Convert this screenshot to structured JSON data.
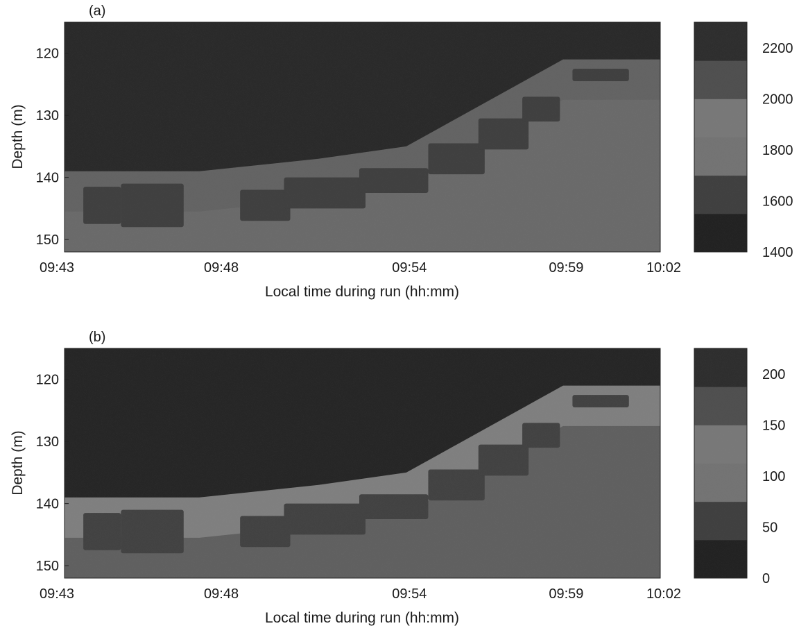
{
  "chart_data": [
    {
      "type": "heatmap",
      "panel_label": "(a)",
      "title": "",
      "xlabel": "Local time during run (hh:mm)",
      "ylabel": "Depth (m)",
      "x_ticks": [
        "09:43",
        "09:48",
        "09:54",
        "09:59",
        "10:02"
      ],
      "x_tick_minutes": [
        0,
        5,
        11,
        16,
        19
      ],
      "y_ticks": [
        120,
        130,
        140,
        150
      ],
      "ylim": [
        115,
        152
      ],
      "y_inverted": true,
      "colorbar": {
        "ticks": [
          2200,
          2000,
          1800,
          1600,
          1400
        ],
        "range": [
          1400,
          2300
        ]
      },
      "seafloor_profile": {
        "time_min": [
          0,
          4.3,
          8.1,
          10.9,
          15.9,
          19
        ],
        "depth_m": [
          139,
          139,
          137,
          135,
          121,
          121
        ]
      },
      "layer_values": {
        "water_column": 2250,
        "seafloor_surface": 2000,
        "subsurface": 1750,
        "high_patches": 2150
      }
    },
    {
      "type": "heatmap",
      "panel_label": "(b)",
      "title": "",
      "xlabel": "Local time during run (hh:mm)",
      "ylabel": "Depth (m)",
      "x_ticks": [
        "09:43",
        "09:48",
        "09:54",
        "09:59",
        "10:02"
      ],
      "x_tick_minutes": [
        0,
        5,
        11,
        16,
        19
      ],
      "y_ticks": [
        120,
        130,
        140,
        150
      ],
      "ylim": [
        115,
        152
      ],
      "y_inverted": true,
      "colorbar": {
        "ticks": [
          200,
          150,
          100,
          50,
          0
        ],
        "range": [
          0,
          225
        ]
      },
      "seafloor_profile": {
        "time_min": [
          0,
          4.3,
          8.1,
          10.9,
          15.9,
          19
        ],
        "depth_m": [
          139,
          139,
          137,
          135,
          121,
          121
        ]
      },
      "layer_values": {
        "water_column": 215,
        "seafloor_surface": 125,
        "subsurface": 80,
        "high_patches": 185
      }
    }
  ]
}
